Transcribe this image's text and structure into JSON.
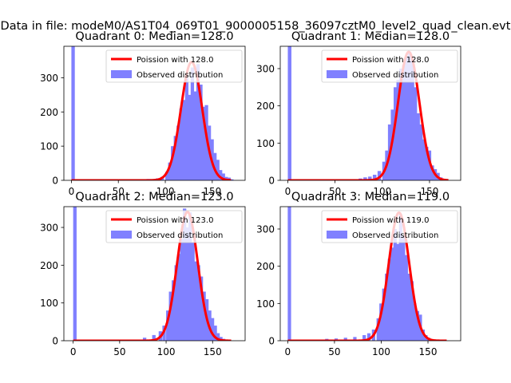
{
  "figure": {
    "suptitle": "Data in file: modeM0/AS1T04_069T01_9000005158_36097cztM0_level2_quad_clean.evt"
  },
  "colors": {
    "hist": "#8080ff",
    "poisson": "#ff0000",
    "spine": "#000000"
  },
  "chart_data": [
    {
      "type": "bar",
      "title": "Quadrant 0: Median=128.0",
      "xlim": [
        -8,
        185
      ],
      "ylim": [
        0,
        392
      ],
      "xticks": [
        0,
        50,
        100,
        150
      ],
      "yticks": [
        0,
        100,
        200,
        300
      ],
      "bin_width": 3.65,
      "legend": [
        "Poission with 128.0",
        "Observed distribution"
      ],
      "poisson_mean": 128.0,
      "poisson_peak": 346,
      "bins": [
        [
          0,
          392
        ],
        [
          70,
          2
        ],
        [
          80,
          4
        ],
        [
          85,
          3
        ],
        [
          90,
          6
        ],
        [
          95,
          10
        ],
        [
          100,
          25
        ],
        [
          103,
          52
        ],
        [
          106,
          100
        ],
        [
          109,
          130
        ],
        [
          112,
          160
        ],
        [
          115,
          210
        ],
        [
          118,
          235
        ],
        [
          121,
          300
        ],
        [
          124,
          250
        ],
        [
          127,
          330
        ],
        [
          130,
          260
        ],
        [
          133,
          340
        ],
        [
          136,
          280
        ],
        [
          139,
          215
        ],
        [
          142,
          220
        ],
        [
          145,
          160
        ],
        [
          148,
          120
        ],
        [
          151,
          80
        ],
        [
          154,
          60
        ],
        [
          157,
          30
        ],
        [
          160,
          20
        ],
        [
          163,
          10
        ],
        [
          166,
          8
        ],
        [
          169,
          3
        ]
      ]
    },
    {
      "type": "bar",
      "title": "Quadrant 1: Median=128.0",
      "xlim": [
        -8,
        183
      ],
      "ylim": [
        0,
        360
      ],
      "xticks": [
        0,
        50,
        100,
        150
      ],
      "yticks": [
        0,
        100,
        200,
        300
      ],
      "bin_width": 3.8,
      "legend": [
        "Poission with 128.0",
        "Observed distribution"
      ],
      "poisson_mean": 128.0,
      "poisson_peak": 345,
      "bins": [
        [
          0,
          360
        ],
        [
          75,
          5
        ],
        [
          80,
          8
        ],
        [
          85,
          10
        ],
        [
          90,
          15
        ],
        [
          95,
          25
        ],
        [
          100,
          50
        ],
        [
          103,
          80
        ],
        [
          106,
          150
        ],
        [
          109,
          190
        ],
        [
          112,
          250
        ],
        [
          115,
          270
        ],
        [
          118,
          300
        ],
        [
          121,
          310
        ],
        [
          124,
          330
        ],
        [
          127,
          345
        ],
        [
          130,
          320
        ],
        [
          133,
          250
        ],
        [
          136,
          180
        ],
        [
          139,
          150
        ],
        [
          142,
          110
        ],
        [
          145,
          90
        ],
        [
          148,
          80
        ],
        [
          151,
          40
        ],
        [
          154,
          30
        ],
        [
          157,
          20
        ],
        [
          160,
          8
        ],
        [
          163,
          3
        ]
      ]
    },
    {
      "type": "bar",
      "title": "Quadrant 2: Median=123.0",
      "xlim": [
        -10,
        185
      ],
      "ylim": [
        0,
        355
      ],
      "xticks": [
        0,
        50,
        100,
        150
      ],
      "yticks": [
        0,
        100,
        200,
        300
      ],
      "bin_width": 3.7,
      "legend": [
        "Poission with 123.0",
        "Observed distribution"
      ],
      "poisson_mean": 123.0,
      "poisson_peak": 341,
      "bins": [
        [
          0,
          355
        ],
        [
          60,
          2
        ],
        [
          75,
          8
        ],
        [
          85,
          15
        ],
        [
          92,
          25
        ],
        [
          96,
          40
        ],
        [
          100,
          80
        ],
        [
          103,
          130
        ],
        [
          106,
          160
        ],
        [
          109,
          200
        ],
        [
          112,
          230
        ],
        [
          115,
          270
        ],
        [
          118,
          350
        ],
        [
          121,
          300
        ],
        [
          124,
          340
        ],
        [
          127,
          260
        ],
        [
          130,
          210
        ],
        [
          133,
          200
        ],
        [
          136,
          170
        ],
        [
          139,
          130
        ],
        [
          142,
          110
        ],
        [
          145,
          80
        ],
        [
          148,
          60
        ],
        [
          151,
          40
        ],
        [
          154,
          20
        ],
        [
          157,
          10
        ],
        [
          160,
          5
        ]
      ]
    },
    {
      "type": "bar",
      "title": "Quadrant 3: Median=119.0",
      "xlim": [
        -8,
        185
      ],
      "ylim": [
        0,
        360
      ],
      "xticks": [
        0,
        50,
        100,
        150
      ],
      "yticks": [
        0,
        100,
        200,
        300
      ],
      "bin_width": 3.6,
      "legend": [
        "Poission with 119.0",
        "Observed distribution"
      ],
      "poisson_mean": 119.0,
      "poisson_peak": 344,
      "bins": [
        [
          0,
          360
        ],
        [
          40,
          5
        ],
        [
          50,
          6
        ],
        [
          60,
          8
        ],
        [
          70,
          10
        ],
        [
          80,
          15
        ],
        [
          85,
          20
        ],
        [
          90,
          30
        ],
        [
          95,
          60
        ],
        [
          98,
          100
        ],
        [
          101,
          140
        ],
        [
          104,
          180
        ],
        [
          107,
          220
        ],
        [
          110,
          250
        ],
        [
          113,
          300
        ],
        [
          116,
          260
        ],
        [
          119,
          340
        ],
        [
          122,
          280
        ],
        [
          125,
          230
        ],
        [
          128,
          180
        ],
        [
          131,
          160
        ],
        [
          134,
          100
        ],
        [
          137,
          80
        ],
        [
          140,
          70
        ],
        [
          143,
          30
        ],
        [
          146,
          15
        ],
        [
          149,
          8
        ],
        [
          152,
          3
        ]
      ]
    }
  ]
}
